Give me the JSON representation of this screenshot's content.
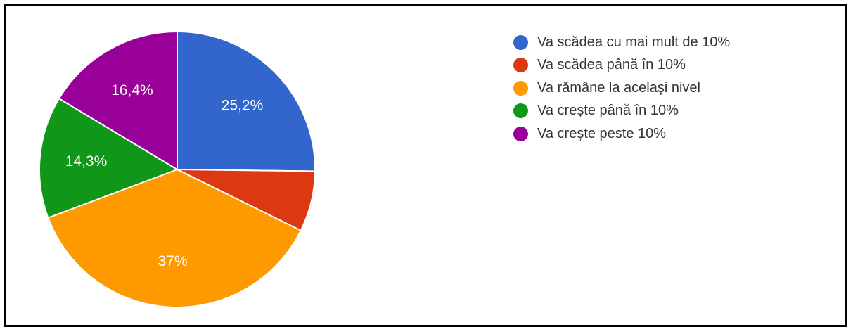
{
  "chart_data": {
    "type": "pie",
    "title": "",
    "start_angle_deg": 90,
    "direction": "clockwise",
    "legend_position": "right",
    "series": [
      {
        "name": "Va scădea cu mai mult de 10%",
        "value": 25.2,
        "label": "25,2%",
        "color": "#3366cc"
      },
      {
        "name": "Va scădea până în 10%",
        "value": 7.1,
        "label": "",
        "color": "#dc3912"
      },
      {
        "name": "Va rămâne la același nivel",
        "value": 37.0,
        "label": "37%",
        "color": "#ff9900"
      },
      {
        "name": "Va crește până în 10%",
        "value": 14.3,
        "label": "14,3%",
        "color": "#109618"
      },
      {
        "name": "Va crește peste 10%",
        "value": 16.4,
        "label": "16,4%",
        "color": "#990099"
      }
    ]
  }
}
